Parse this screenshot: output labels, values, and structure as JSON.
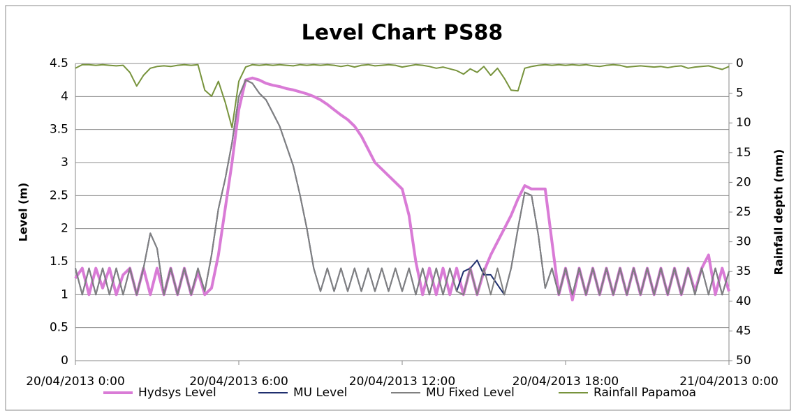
{
  "chart_data": {
    "type": "line",
    "title": "Level Chart PS88",
    "y_label": "Level (m)",
    "y2_label": "Rainfall depth (mm)",
    "x": [
      0,
      0.25,
      0.5,
      0.75,
      1,
      1.25,
      1.5,
      1.75,
      2,
      2.25,
      2.5,
      2.75,
      3,
      3.25,
      3.5,
      3.75,
      4,
      4.25,
      4.5,
      4.75,
      5,
      5.25,
      5.5,
      5.75,
      6,
      6.25,
      6.5,
      6.75,
      7,
      7.25,
      7.5,
      7.75,
      8,
      8.25,
      8.5,
      8.75,
      9,
      9.25,
      9.5,
      9.75,
      10,
      10.25,
      10.5,
      10.75,
      11,
      11.25,
      11.5,
      11.75,
      12,
      12.25,
      12.5,
      12.75,
      13,
      13.25,
      13.5,
      13.75,
      14,
      14.25,
      14.5,
      14.75,
      15,
      15.25,
      15.5,
      15.75,
      16,
      16.25,
      16.5,
      16.75,
      17,
      17.25,
      17.5,
      17.75,
      18,
      18.25,
      18.5,
      18.75,
      19,
      19.25,
      19.5,
      19.75,
      20,
      20.25,
      20.5,
      20.75,
      21,
      21.25,
      21.5,
      21.75,
      22,
      22.25,
      22.5,
      22.75,
      23,
      23.25,
      23.5,
      23.75,
      24
    ],
    "xlim": [
      0,
      24
    ],
    "xticks": [
      {
        "value": 0,
        "label": "20/04/2013 0:00"
      },
      {
        "value": 6,
        "label": "20/04/2013 6:00"
      },
      {
        "value": 12,
        "label": "20/04/2013 12:00"
      },
      {
        "value": 18,
        "label": "20/04/2013 18:00"
      },
      {
        "value": 24,
        "label": "21/04/2013 0:00"
      }
    ],
    "ylim": [
      0,
      4.5
    ],
    "yticks": [
      0,
      0.5,
      1,
      1.5,
      2,
      2.5,
      3,
      3.5,
      4,
      4.5
    ],
    "y2lim": [
      50,
      0
    ],
    "y2ticks": [
      0,
      5,
      10,
      15,
      20,
      25,
      30,
      35,
      40,
      45,
      50
    ],
    "grid": true,
    "legend": "bottom",
    "series": [
      {
        "name": "Hydsys Level",
        "color": "#d97bd6",
        "values": [
          1.25,
          1.4,
          1.0,
          1.4,
          1.1,
          1.4,
          1.0,
          1.3,
          1.4,
          1.0,
          1.4,
          1.0,
          1.4,
          1.0,
          1.4,
          1.0,
          1.4,
          1.0,
          1.35,
          1.0,
          1.1,
          1.6,
          2.3,
          3.0,
          3.8,
          4.25,
          4.28,
          4.25,
          4.2,
          4.17,
          4.15,
          4.12,
          4.1,
          4.07,
          4.04,
          4.0,
          3.95,
          3.88,
          3.8,
          3.72,
          3.65,
          3.55,
          3.4,
          3.2,
          3.0,
          2.9,
          2.8,
          2.7,
          2.6,
          2.2,
          1.5,
          1.0,
          1.4,
          1.0,
          1.4,
          1.0,
          1.4,
          1.0,
          1.4,
          1.0,
          1.35,
          1.6,
          1.8,
          2.0,
          2.2,
          2.45,
          2.65,
          2.6,
          2.6,
          2.6,
          1.8,
          1.0,
          1.4,
          0.92,
          1.4,
          1.0,
          1.4,
          1.0,
          1.4,
          1.0,
          1.4,
          1.0,
          1.4,
          1.0,
          1.4,
          1.0,
          1.4,
          1.0,
          1.4,
          1.0,
          1.4,
          1.05,
          1.4,
          1.6,
          1.0,
          1.4,
          1.05
        ]
      },
      {
        "name": "MU Level",
        "color": "#1f2f6e",
        "values": [
          1.4,
          1.0,
          1.4,
          1.0,
          1.4,
          1.0,
          1.4,
          1.0,
          1.4,
          1.0,
          1.4,
          1.93,
          1.7,
          1.0,
          1.4,
          1.0,
          1.4,
          1.0,
          1.4,
          1.05,
          1.6,
          2.3,
          2.75,
          3.3,
          4.0,
          4.25,
          4.2,
          4.05,
          3.95,
          3.75,
          3.55,
          3.25,
          2.95,
          2.5,
          2.0,
          1.4,
          1.05,
          1.4,
          1.05,
          1.4,
          1.05,
          1.4,
          1.05,
          1.4,
          1.05,
          1.4,
          1.05,
          1.4,
          1.05,
          1.4,
          1.0,
          1.4,
          1.0,
          1.4,
          1.0,
          1.4,
          1.05,
          1.35,
          1.4,
          1.52,
          1.3,
          1.3,
          1.15,
          1.0,
          1.4,
          2.0,
          2.55,
          2.5,
          1.9,
          1.1,
          1.4,
          1.0,
          1.4,
          1.0,
          1.4,
          1.0,
          1.4,
          1.0,
          1.4,
          1.0,
          1.4,
          1.0,
          1.4,
          1.0,
          1.4,
          1.0,
          1.4,
          1.0,
          1.4,
          1.0,
          1.4,
          1.0,
          1.4,
          1.0,
          1.4,
          1.0,
          1.35
        ]
      },
      {
        "name": "MU Fixed Level",
        "color": "#808080",
        "values": [
          1.4,
          1.0,
          1.4,
          1.0,
          1.4,
          1.0,
          1.4,
          1.0,
          1.4,
          1.0,
          1.4,
          1.93,
          1.7,
          1.0,
          1.4,
          1.0,
          1.4,
          1.0,
          1.4,
          1.05,
          1.6,
          2.3,
          2.75,
          3.3,
          4.0,
          4.25,
          4.2,
          4.05,
          3.95,
          3.75,
          3.55,
          3.25,
          2.95,
          2.5,
          2.0,
          1.4,
          1.05,
          1.4,
          1.05,
          1.4,
          1.05,
          1.4,
          1.05,
          1.4,
          1.05,
          1.4,
          1.05,
          1.4,
          1.05,
          1.4,
          1.0,
          1.4,
          1.0,
          1.4,
          1.0,
          1.4,
          1.05,
          1.0,
          1.4,
          1.0,
          1.4,
          1.0,
          1.4,
          1.0,
          1.4,
          2.0,
          2.55,
          2.5,
          1.9,
          1.1,
          1.4,
          1.0,
          1.4,
          1.0,
          1.4,
          1.0,
          1.4,
          1.0,
          1.4,
          1.0,
          1.4,
          1.0,
          1.4,
          1.0,
          1.4,
          1.0,
          1.4,
          1.0,
          1.4,
          1.0,
          1.4,
          1.0,
          1.4,
          1.0,
          1.4,
          1.0,
          1.35
        ]
      },
      {
        "name": "Rainfall Papamoa",
        "color": "#77933c",
        "axis": "y2",
        "values": [
          0.8,
          0.2,
          0.2,
          0.3,
          0.2,
          0.3,
          0.4,
          0.3,
          1.5,
          3.8,
          2.0,
          0.8,
          0.5,
          0.4,
          0.5,
          0.3,
          0.2,
          0.3,
          0.2,
          4.5,
          5.5,
          3.0,
          6.5,
          10.8,
          3.0,
          0.6,
          0.2,
          0.3,
          0.2,
          0.3,
          0.2,
          0.3,
          0.4,
          0.2,
          0.3,
          0.2,
          0.3,
          0.2,
          0.3,
          0.5,
          0.3,
          0.6,
          0.3,
          0.2,
          0.4,
          0.3,
          0.2,
          0.3,
          0.6,
          0.4,
          0.2,
          0.3,
          0.5,
          0.8,
          0.6,
          0.9,
          1.2,
          1.8,
          0.9,
          1.5,
          0.5,
          2.0,
          0.8,
          2.5,
          4.5,
          4.6,
          0.8,
          0.5,
          0.3,
          0.2,
          0.3,
          0.2,
          0.3,
          0.2,
          0.3,
          0.2,
          0.4,
          0.5,
          0.3,
          0.2,
          0.3,
          0.6,
          0.5,
          0.4,
          0.5,
          0.6,
          0.5,
          0.7,
          0.5,
          0.4,
          0.8,
          0.6,
          0.5,
          0.4,
          0.7,
          1.0,
          0.5
        ]
      }
    ]
  }
}
